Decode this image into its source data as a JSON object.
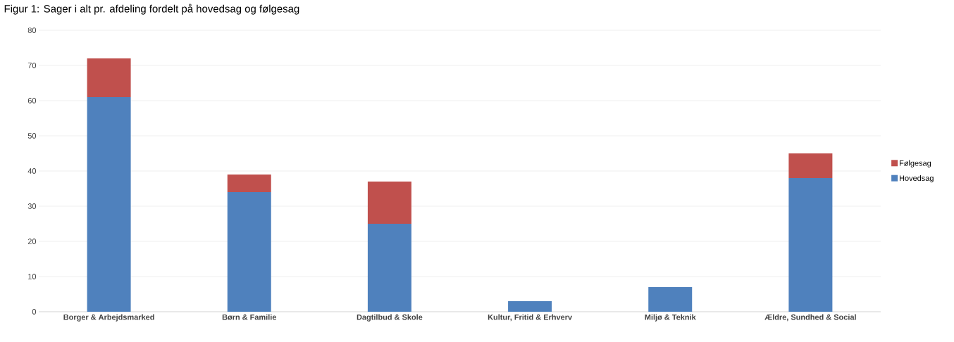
{
  "chart_data": {
    "type": "bar",
    "title": "Figur 1: Sager i alt pr. afdeling fordelt på hovedsag og følgesag",
    "categories": [
      "Borger & Arbejdsmarked",
      "Børn & Familie",
      "Dagtilbud & Skole",
      "Kultur, Fritid & Erhverv",
      "Miljø & Teknik",
      "Ældre, Sundhed & Social"
    ],
    "stacked": true,
    "series": [
      {
        "name": "Hovedsag",
        "color": "#4f81bd",
        "values": [
          61,
          34,
          25,
          3,
          7,
          38
        ]
      },
      {
        "name": "Følgesag",
        "color": "#c0504d",
        "values": [
          11,
          5,
          12,
          null,
          null,
          7
        ]
      }
    ],
    "ylim": [
      0,
      80
    ],
    "yticks": [
      0,
      10,
      20,
      30,
      40,
      50,
      60,
      70,
      80
    ],
    "grid": "y",
    "legend": "right"
  }
}
